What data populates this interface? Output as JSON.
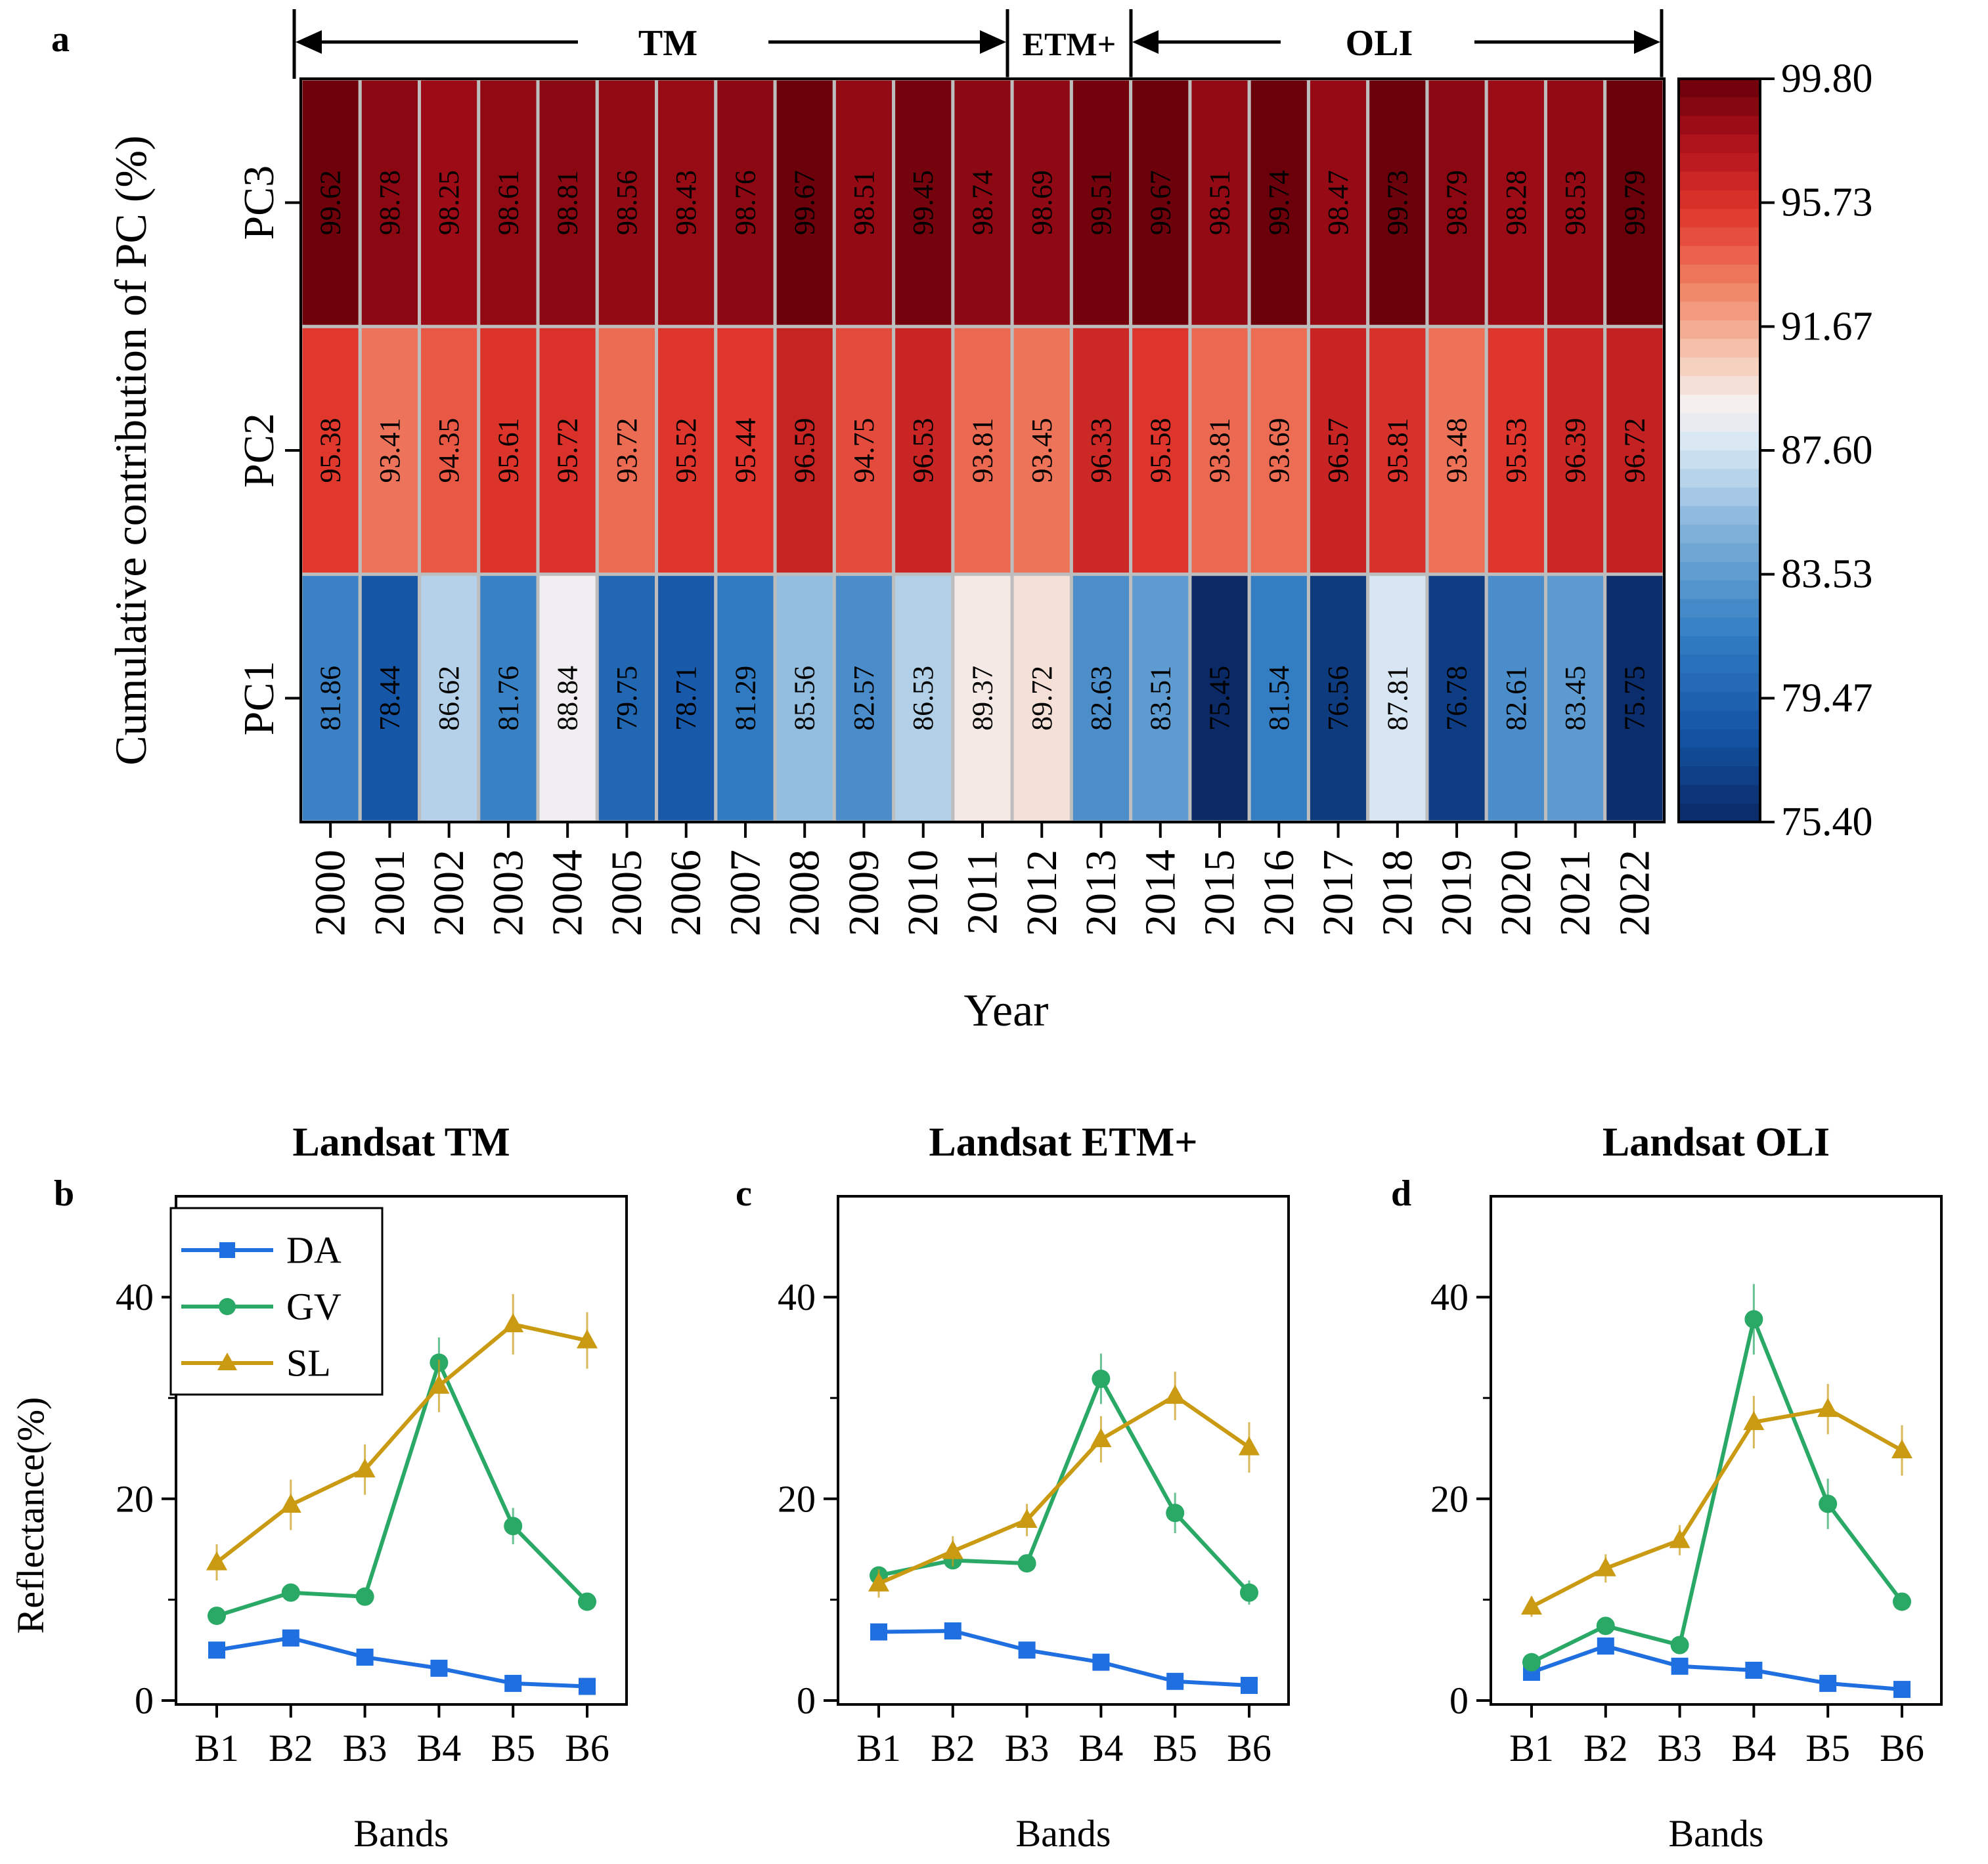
{
  "chart_data": [
    {
      "panel": "a",
      "type": "heatmap",
      "title": "",
      "xlabel": "Year",
      "ylabel": "Cumulative contribution of PC (%)",
      "sensor_labels": [
        "TM",
        "ETM+",
        "OLI"
      ],
      "years": [
        "2000",
        "2001",
        "2002",
        "2003",
        "2004",
        "2005",
        "2006",
        "2007",
        "2008",
        "2009",
        "2010",
        "2011",
        "2012",
        "2013",
        "2014",
        "2015",
        "2016",
        "2017",
        "2018",
        "2019",
        "2020",
        "2021",
        "2022"
      ],
      "rows": [
        "PC3",
        "PC2",
        "PC1"
      ],
      "values": {
        "PC3": [
          "99.62",
          "98.78",
          "98.25",
          "98.61",
          "98.81",
          "98.56",
          "98.43",
          "98.76",
          "99.67",
          "98.51",
          "99.45",
          "98.74",
          "98.69",
          "99.51",
          "99.67",
          "98.51",
          "99.74",
          "98.47",
          "99.73",
          "98.79",
          "98.28",
          "98.53",
          "99.79"
        ],
        "PC2": [
          "95.38",
          "93.41",
          "94.35",
          "95.61",
          "95.72",
          "93.72",
          "95.52",
          "95.44",
          "96.59",
          "94.75",
          "96.53",
          "93.81",
          "93.45",
          "96.33",
          "95.58",
          "93.81",
          "93.69",
          "96.57",
          "95.81",
          "93.48",
          "95.53",
          "96.39",
          "96.72"
        ],
        "PC1": [
          "81.86",
          "78.44",
          "86.62",
          "81.76",
          "88.84",
          "79.75",
          "78.71",
          "81.29",
          "85.56",
          "82.57",
          "86.53",
          "89.37",
          "89.72",
          "82.63",
          "83.51",
          "75.45",
          "81.54",
          "76.56",
          "87.81",
          "76.78",
          "82.61",
          "83.45",
          "75.75"
        ]
      },
      "colorbar": {
        "min": 75.4,
        "max": 99.8,
        "ticks": [
          "99.80",
          "95.73",
          "91.67",
          "87.60",
          "83.53",
          "79.47",
          "75.40"
        ]
      }
    },
    {
      "panel": "b",
      "type": "line",
      "title": "Landsat TM",
      "xlabel": "Bands",
      "ylabel": "Reflectance(%)",
      "categories": [
        "B1",
        "B2",
        "B3",
        "B4",
        "B5",
        "B6"
      ],
      "ylim": [
        0,
        50
      ],
      "yticks": [
        "0",
        "20",
        "40"
      ],
      "series": [
        {
          "name": "DA",
          "marker": "square",
          "color": "#1f6fe0",
          "values": [
            5.0,
            6.2,
            4.3,
            3.2,
            1.7,
            1.4
          ],
          "errors": [
            0.3,
            0.4,
            0.3,
            0.3,
            0.2,
            0.2
          ]
        },
        {
          "name": "GV",
          "marker": "circle",
          "color": "#2aa866",
          "values": [
            8.4,
            10.7,
            10.3,
            33.5,
            17.3,
            9.8
          ],
          "errors": [
            0.5,
            0.6,
            0.6,
            2.5,
            1.8,
            0.6
          ]
        },
        {
          "name": "SL",
          "marker": "triangle",
          "color": "#c99a12",
          "values": [
            13.7,
            19.4,
            22.9,
            31.2,
            37.3,
            35.7
          ],
          "errors": [
            1.8,
            2.5,
            2.5,
            2.6,
            3.0,
            2.8
          ]
        }
      ]
    },
    {
      "panel": "c",
      "type": "line",
      "title": "Landsat ETM+",
      "xlabel": "Bands",
      "ylabel": "",
      "categories": [
        "B1",
        "B2",
        "B3",
        "B4",
        "B5",
        "B6"
      ],
      "ylim": [
        0,
        50
      ],
      "yticks": [
        "0",
        "20",
        "40"
      ],
      "series": [
        {
          "name": "DA",
          "marker": "square",
          "color": "#1f6fe0",
          "values": [
            6.8,
            6.9,
            5.0,
            3.8,
            1.9,
            1.5
          ],
          "errors": [
            0.4,
            0.4,
            0.3,
            0.3,
            0.2,
            0.2
          ]
        },
        {
          "name": "GV",
          "marker": "circle",
          "color": "#2aa866",
          "values": [
            12.4,
            13.9,
            13.6,
            31.9,
            18.6,
            10.7
          ],
          "errors": [
            0.7,
            0.8,
            0.8,
            2.5,
            2.0,
            1.2
          ]
        },
        {
          "name": "SL",
          "marker": "triangle",
          "color": "#c99a12",
          "values": [
            11.6,
            14.8,
            17.9,
            25.9,
            30.2,
            25.1
          ],
          "errors": [
            1.4,
            1.5,
            1.6,
            2.3,
            2.4,
            2.5
          ]
        }
      ]
    },
    {
      "panel": "d",
      "type": "line",
      "title": "Landsat OLI",
      "xlabel": "Bands",
      "ylabel": "",
      "categories": [
        "B1",
        "B2",
        "B3",
        "B4",
        "B5",
        "B6"
      ],
      "ylim": [
        0,
        50
      ],
      "yticks": [
        "0",
        "20",
        "40"
      ],
      "series": [
        {
          "name": "DA",
          "marker": "square",
          "color": "#1f6fe0",
          "values": [
            2.8,
            5.4,
            3.4,
            3.0,
            1.7,
            1.1
          ],
          "errors": [
            0.3,
            0.5,
            0.3,
            0.3,
            0.2,
            0.2
          ]
        },
        {
          "name": "GV",
          "marker": "circle",
          "color": "#2aa866",
          "values": [
            3.8,
            7.4,
            5.5,
            37.8,
            19.5,
            9.8
          ],
          "errors": [
            0.5,
            0.6,
            0.5,
            3.5,
            2.5,
            0.7
          ]
        },
        {
          "name": "SL",
          "marker": "triangle",
          "color": "#c99a12",
          "values": [
            9.3,
            13.1,
            15.9,
            27.6,
            28.9,
            24.8
          ],
          "errors": [
            1.0,
            1.4,
            1.5,
            2.6,
            2.5,
            2.5
          ]
        }
      ]
    }
  ],
  "legend": [
    "DA",
    "GV",
    "SL"
  ]
}
